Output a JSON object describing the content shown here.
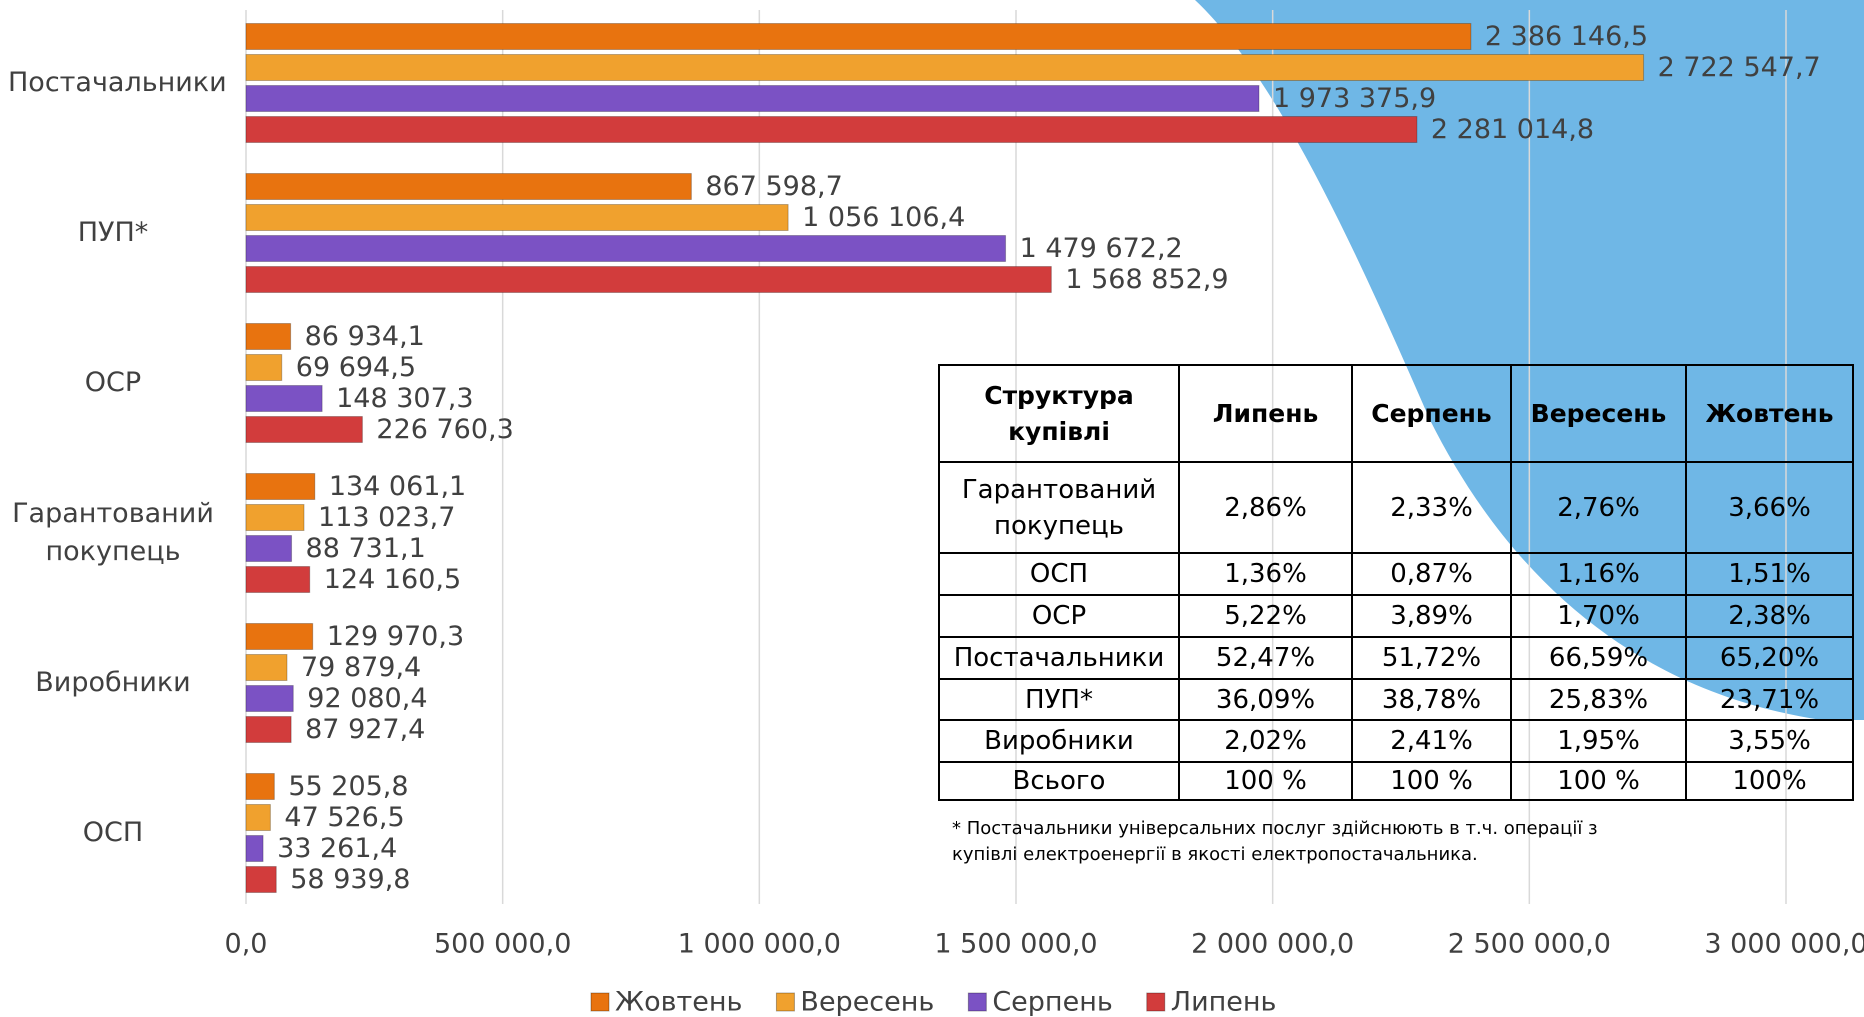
{
  "chart_data": {
    "type": "bar",
    "orientation": "horizontal",
    "categories": [
      "Постачальники",
      "ПУП*",
      "ОСР",
      "Гарантований покупець",
      "Виробники",
      "ОСП"
    ],
    "series": [
      {
        "name": "Жовтень",
        "color": "#e8730f",
        "values": [
          2386146.5,
          867598.7,
          86934.1,
          134061.1,
          129970.3,
          55205.8
        ],
        "value_labels": [
          "2 386 146,5",
          "867 598,7",
          "86 934,1",
          "134 061,1",
          "129 970,3",
          "55 205,8"
        ]
      },
      {
        "name": "Вересень",
        "color": "#f0a12e",
        "values": [
          2722547.7,
          1056106.4,
          69694.5,
          113023.7,
          79879.4,
          47526.5
        ],
        "value_labels": [
          "2 722 547,7",
          "1 056 106,4",
          "69 694,5",
          "113 023,7",
          "79 879,4",
          "47 526,5"
        ]
      },
      {
        "name": "Серпень",
        "color": "#7b52c4",
        "values": [
          1973375.9,
          1479672.2,
          148307.3,
          88731.1,
          92080.4,
          33261.4
        ],
        "value_labels": [
          "1 973 375,9",
          "1 479 672,2",
          "148 307,3",
          "88 731,1",
          "92 080,4",
          "33 261,4"
        ]
      },
      {
        "name": "Липень",
        "color": "#d23c3c",
        "values": [
          2281014.8,
          1568852.9,
          226760.3,
          124160.5,
          87927.4,
          58939.8
        ],
        "value_labels": [
          "2 281 014,8",
          "1 568 852,9",
          "226 760,3",
          "124 160,5",
          "87 927,4",
          "58 939,8"
        ]
      }
    ],
    "xlim": [
      0,
      3000000
    ],
    "xticks": [
      {
        "value": 0,
        "label": "0,0"
      },
      {
        "value": 500000,
        "label": "500 000,0"
      },
      {
        "value": 1000000,
        "label": "1 000 000,0"
      },
      {
        "value": 1500000,
        "label": "1 500 000,0"
      },
      {
        "value": 2000000,
        "label": "2 000 000,0"
      },
      {
        "value": 2500000,
        "label": "2 500 000,0"
      },
      {
        "value": 3000000,
        "label": "3 000 000,0"
      }
    ],
    "grid": true,
    "legend": "bottom"
  },
  "table": {
    "header": [
      "Структура купівлі",
      "Липень",
      "Серпень",
      "Вересень",
      "Жовтень"
    ],
    "rows": [
      [
        "Гарантований покупець",
        "2,86%",
        "2,33%",
        "2,76%",
        "3,66%"
      ],
      [
        "ОСП",
        "1,36%",
        "0,87%",
        "1,16%",
        "1,51%"
      ],
      [
        "ОСР",
        "5,22%",
        "3,89%",
        "1,70%",
        "2,38%"
      ],
      [
        "Постачальники",
        "52,47%",
        "51,72%",
        "66,59%",
        "65,20%"
      ],
      [
        "ПУП*",
        "36,09%",
        "38,78%",
        "25,83%",
        "23,71%"
      ],
      [
        "Виробники",
        "2,02%",
        "2,41%",
        "1,95%",
        "3,55%"
      ],
      [
        "Всього",
        "100 %",
        "100 %",
        "100 %",
        "100%"
      ]
    ]
  },
  "footnote": "* Постачальники універсальних послуг здійснюють в т.ч. операції з купівлі електроенергії в якості електропостачальника."
}
